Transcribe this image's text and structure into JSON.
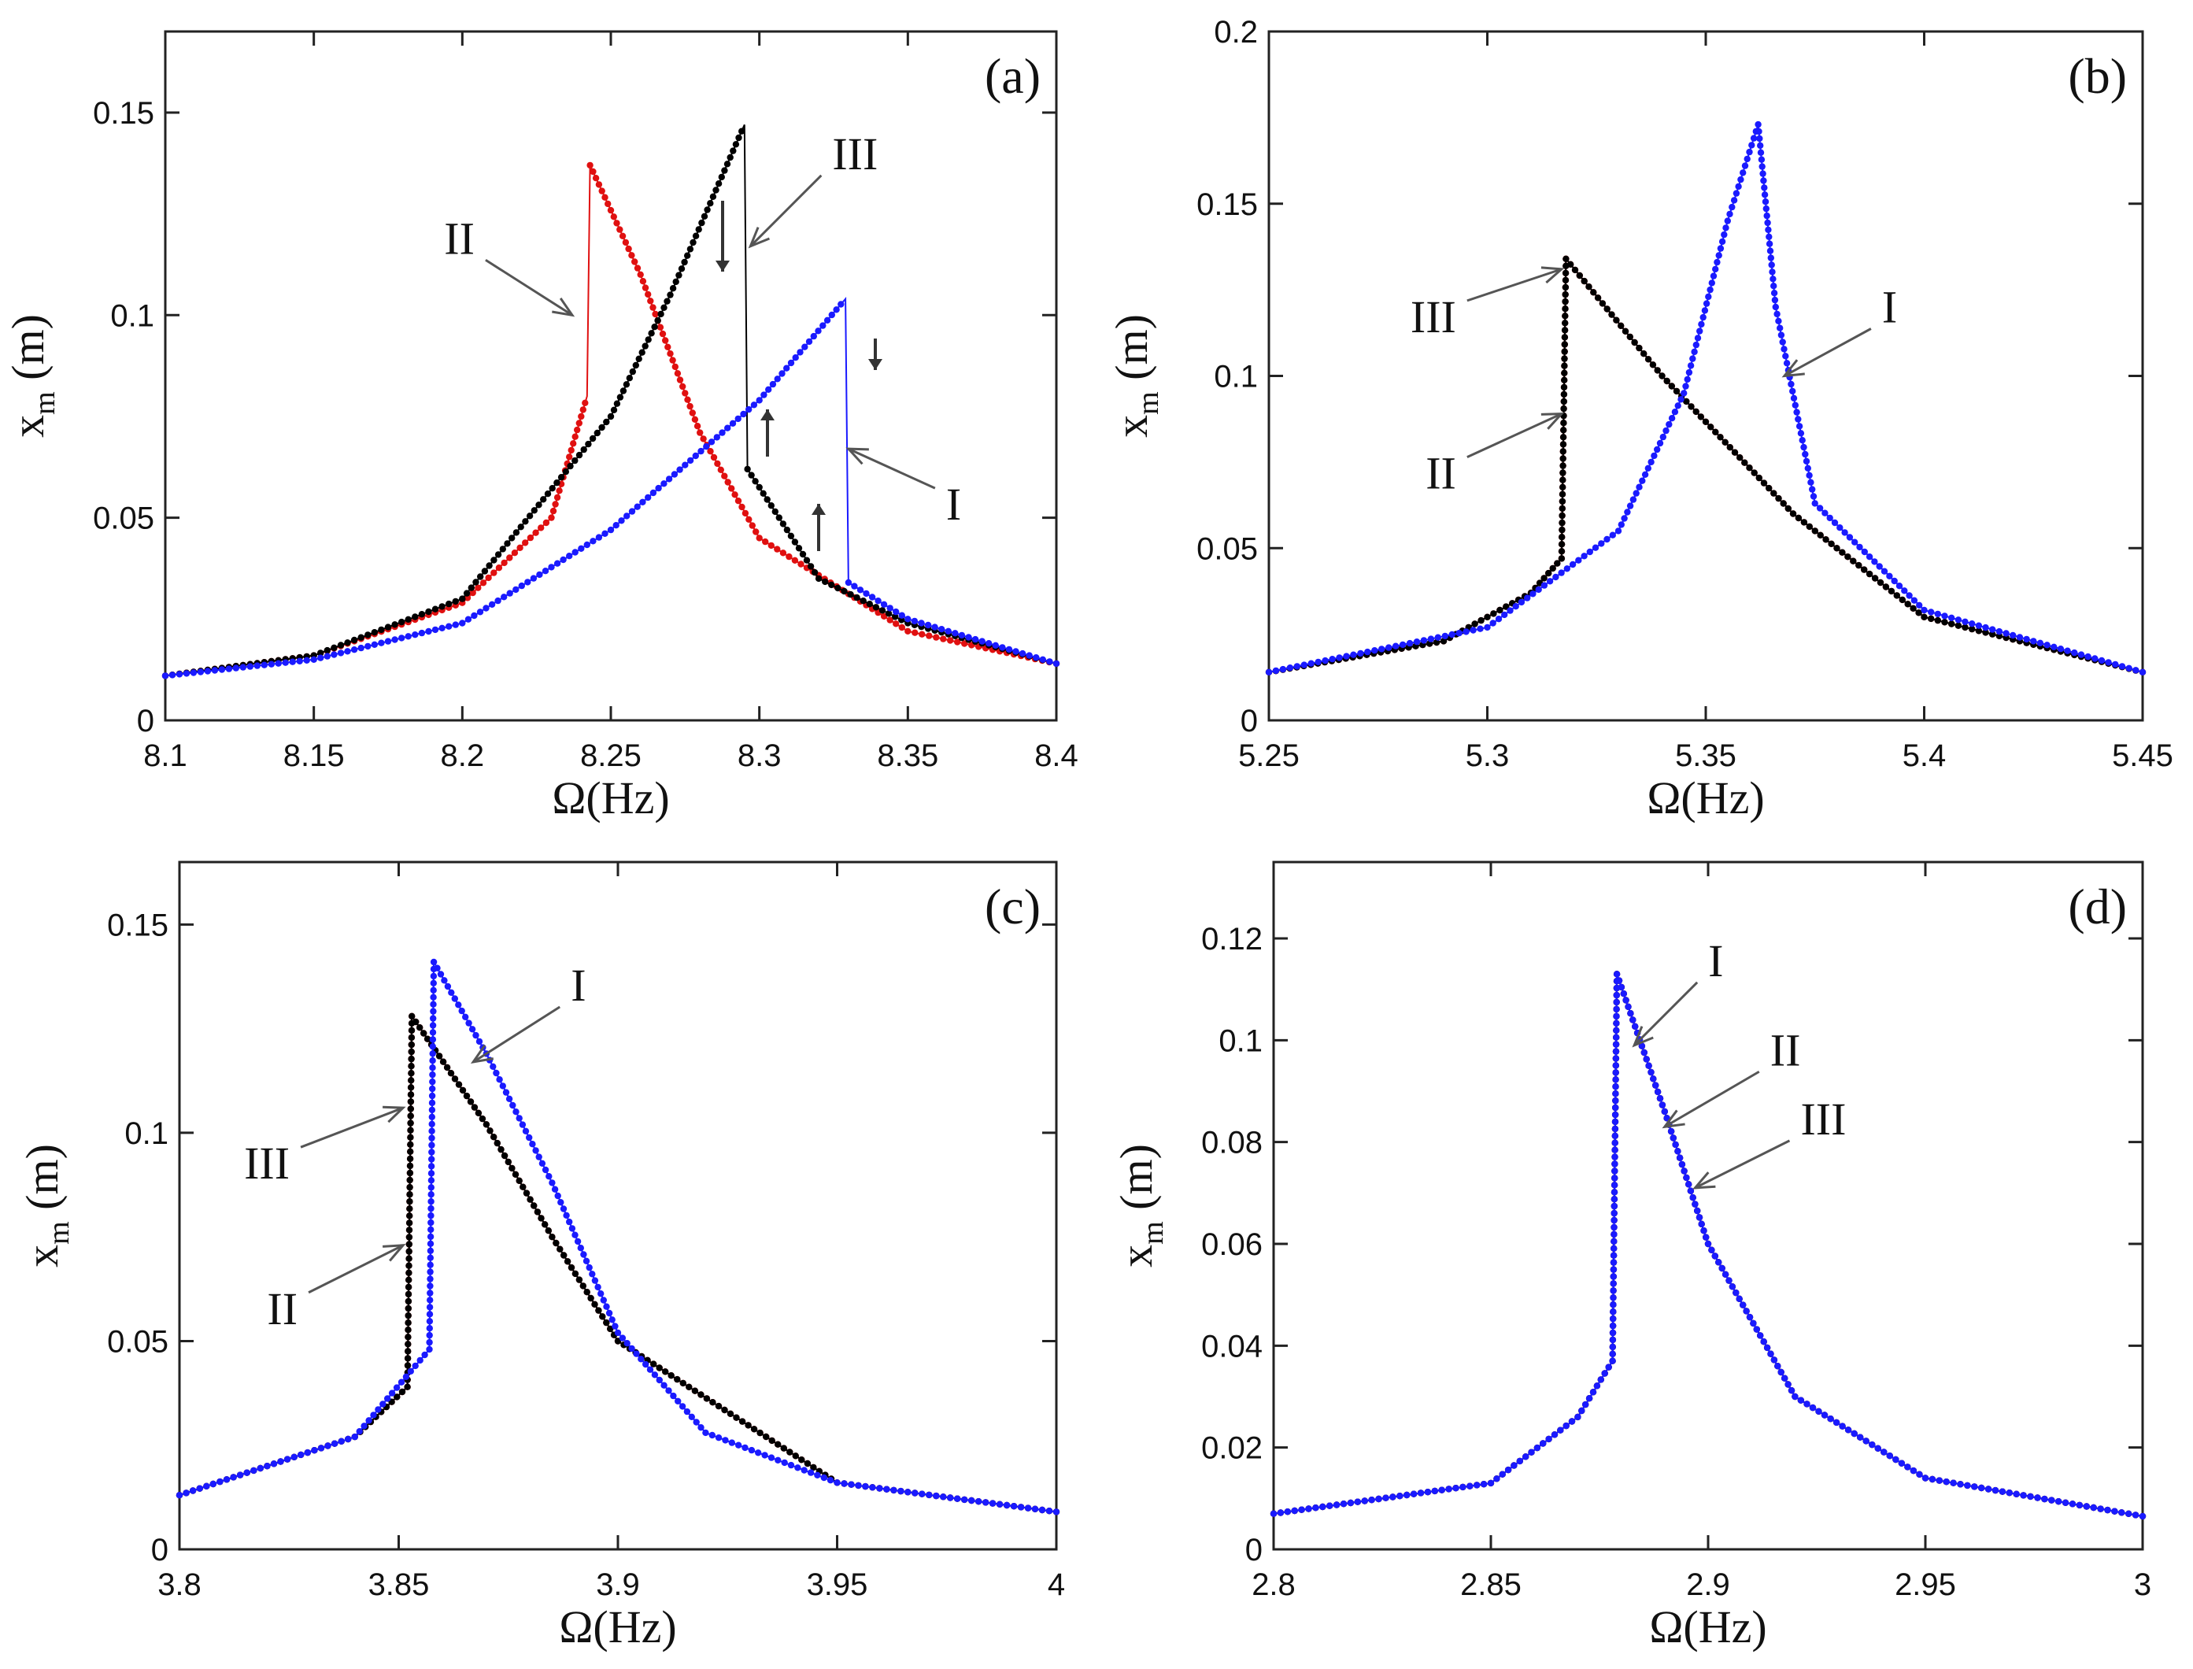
{
  "chart_data": [
    {
      "type": "line",
      "panel_label": "(a)",
      "xlabel": "Ω(Hz)",
      "ylabel_main": "x",
      "ylabel_sub": "m",
      "ylabel_unit": " (m)",
      "xlim": [
        8.1,
        8.4
      ],
      "ylim": [
        0,
        0.17
      ],
      "xticks": [
        8.1,
        8.15,
        8.2,
        8.25,
        8.3,
        8.35,
        8.4
      ],
      "xtick_labels": [
        "8.1",
        "8.15",
        "8.2",
        "8.25",
        "8.3",
        "8.35",
        "8.4"
      ],
      "yticks": [
        0,
        0.05,
        0.1,
        0.15
      ],
      "ytick_labels": [
        "0",
        "0.05",
        "0.1",
        "0.15"
      ],
      "series": [
        {
          "name": "I",
          "color": "#1a1aff",
          "x": [
            8.1,
            8.15,
            8.2,
            8.25,
            8.3,
            8.329,
            8.33,
            8.35,
            8.4
          ],
          "y": [
            0.011,
            0.015,
            0.024,
            0.047,
            0.079,
            0.104,
            0.034,
            0.025,
            0.014
          ]
        },
        {
          "name": "II",
          "color": "#e01010",
          "x": [
            8.1,
            8.15,
            8.2,
            8.23,
            8.242,
            8.243,
            8.26,
            8.28,
            8.3,
            8.35,
            8.4
          ],
          "y": [
            0.011,
            0.016,
            0.029,
            0.05,
            0.08,
            0.137,
            0.11,
            0.071,
            0.045,
            0.022,
            0.014
          ]
        },
        {
          "name": "III",
          "color": "#000000",
          "x": [
            8.1,
            8.15,
            8.2,
            8.25,
            8.27,
            8.295,
            8.296,
            8.32,
            8.35,
            8.4
          ],
          "y": [
            0.011,
            0.016,
            0.03,
            0.075,
            0.105,
            0.147,
            0.062,
            0.035,
            0.024,
            0.014
          ]
        }
      ],
      "annotations": [
        {
          "text": "II",
          "tx": 8.237,
          "ty": 0.1
        },
        {
          "text": "III",
          "tx": 8.297,
          "ty": 0.117
        },
        {
          "text": "I",
          "tx": 8.33,
          "ty": 0.067
        }
      ]
    },
    {
      "type": "line",
      "panel_label": "(b)",
      "xlabel": "Ω(Hz)",
      "ylabel_main": "x",
      "ylabel_sub": "m",
      "ylabel_unit": " (m)",
      "xlim": [
        5.25,
        5.45
      ],
      "ylim": [
        0,
        0.2
      ],
      "xticks": [
        5.25,
        5.3,
        5.35,
        5.4,
        5.45
      ],
      "xtick_labels": [
        "5.25",
        "5.3",
        "5.35",
        "5.4",
        "5.45"
      ],
      "yticks": [
        0,
        0.05,
        0.1,
        0.15,
        0.2
      ],
      "ytick_labels": [
        "0",
        "0.05",
        "0.1",
        "0.15",
        "0.2"
      ],
      "series": [
        {
          "name": "I",
          "color": "#1a1aff",
          "x": [
            5.25,
            5.3,
            5.33,
            5.345,
            5.355,
            5.362,
            5.366,
            5.375,
            5.4,
            5.45
          ],
          "y": [
            0.014,
            0.027,
            0.055,
            0.095,
            0.145,
            0.173,
            0.12,
            0.063,
            0.032,
            0.014
          ]
        },
        {
          "name": "II",
          "color": "#e01010",
          "x": [
            5.25,
            5.29,
            5.31,
            5.317,
            5.318,
            5.34,
            5.37,
            5.4,
            5.45
          ],
          "y": [
            0.014,
            0.023,
            0.037,
            0.047,
            0.134,
            0.1,
            0.06,
            0.03,
            0.014
          ]
        },
        {
          "name": "III",
          "color": "#000000",
          "x": [
            5.25,
            5.29,
            5.31,
            5.317,
            5.318,
            5.34,
            5.37,
            5.4,
            5.45
          ],
          "y": [
            0.014,
            0.023,
            0.037,
            0.047,
            0.134,
            0.1,
            0.06,
            0.03,
            0.014
          ]
        }
      ],
      "annotations": [
        {
          "text": "III",
          "tx": 5.317,
          "ty": 0.131
        },
        {
          "text": "II",
          "tx": 5.317,
          "ty": 0.089
        },
        {
          "text": "I",
          "tx": 5.368,
          "ty": 0.1
        }
      ]
    },
    {
      "type": "line",
      "panel_label": "(c)",
      "xlabel": "Ω(Hz)",
      "ylabel_main": "x",
      "ylabel_sub": "m",
      "ylabel_unit": " (m)",
      "xlim": [
        3.8,
        4.0
      ],
      "ylim": [
        0,
        0.165
      ],
      "xticks": [
        3.8,
        3.85,
        3.9,
        3.95,
        4.0
      ],
      "xtick_labels": [
        "3.8",
        "3.85",
        "3.9",
        "3.95",
        "4"
      ],
      "yticks": [
        0,
        0.05,
        0.1,
        0.15
      ],
      "ytick_labels": [
        "0",
        "0.05",
        "0.1",
        "0.15"
      ],
      "series": [
        {
          "name": "I",
          "color": "#1a1aff",
          "x": [
            3.8,
            3.84,
            3.857,
            3.858,
            3.87,
            3.885,
            3.9,
            3.92,
            3.95,
            4.0
          ],
          "y": [
            0.013,
            0.027,
            0.048,
            0.141,
            0.119,
            0.088,
            0.052,
            0.028,
            0.016,
            0.009
          ]
        },
        {
          "name": "II",
          "color": "#e01010",
          "x": [
            3.8,
            3.84,
            3.852,
            3.853,
            3.87,
            3.885,
            3.9,
            3.95,
            4.0
          ],
          "y": [
            0.013,
            0.027,
            0.039,
            0.128,
            0.102,
            0.075,
            0.05,
            0.016,
            0.009
          ]
        },
        {
          "name": "III",
          "color": "#000000",
          "x": [
            3.8,
            3.84,
            3.852,
            3.853,
            3.87,
            3.885,
            3.9,
            3.95,
            4.0
          ],
          "y": [
            0.013,
            0.027,
            0.039,
            0.128,
            0.102,
            0.075,
            0.05,
            0.016,
            0.009
          ]
        }
      ],
      "annotations": [
        {
          "text": "I",
          "tx": 3.867,
          "ty": 0.117
        },
        {
          "text": "III",
          "tx": 3.851,
          "ty": 0.106
        },
        {
          "text": "II",
          "tx": 3.851,
          "ty": 0.073
        }
      ]
    },
    {
      "type": "line",
      "panel_label": "(d)",
      "xlabel": "Ω(Hz)",
      "ylabel_main": "x",
      "ylabel_sub": "m",
      "ylabel_unit": " (m)",
      "xlim": [
        2.8,
        3.0
      ],
      "ylim": [
        0,
        0.135
      ],
      "xticks": [
        2.8,
        2.85,
        2.9,
        2.95,
        3.0
      ],
      "xtick_labels": [
        "2.8",
        "2.85",
        "2.9",
        "2.95",
        "3"
      ],
      "yticks": [
        0,
        0.02,
        0.04,
        0.06,
        0.08,
        0.1,
        0.12
      ],
      "ytick_labels": [
        "0",
        "0.02",
        "0.04",
        "0.06",
        "0.08",
        "0.1",
        "0.12"
      ],
      "series": [
        {
          "name": "I",
          "color": "#1a1aff",
          "x": [
            2.8,
            2.85,
            2.87,
            2.878,
            2.879,
            2.89,
            2.9,
            2.92,
            2.95,
            3.0
          ],
          "y": [
            0.007,
            0.013,
            0.026,
            0.037,
            0.113,
            0.086,
            0.06,
            0.03,
            0.014,
            0.0065
          ]
        },
        {
          "name": "II",
          "color": "#e01010",
          "x": [
            2.8,
            2.85,
            2.87,
            2.878,
            2.879,
            2.89,
            2.9,
            2.92,
            2.95,
            3.0
          ],
          "y": [
            0.007,
            0.013,
            0.026,
            0.037,
            0.113,
            0.086,
            0.06,
            0.03,
            0.014,
            0.0065
          ]
        },
        {
          "name": "III",
          "color": "#000000",
          "x": [
            2.8,
            2.85,
            2.87,
            2.878,
            2.879,
            2.89,
            2.9,
            2.92,
            2.95,
            3.0
          ],
          "y": [
            0.007,
            0.013,
            0.026,
            0.037,
            0.113,
            0.086,
            0.06,
            0.03,
            0.014,
            0.0065
          ]
        }
      ],
      "annotations": [
        {
          "text": "I",
          "tx": 2.883,
          "ty": 0.099
        },
        {
          "text": "II",
          "tx": 2.89,
          "ty": 0.083
        },
        {
          "text": "III",
          "tx": 2.897,
          "ty": 0.071
        }
      ]
    }
  ]
}
